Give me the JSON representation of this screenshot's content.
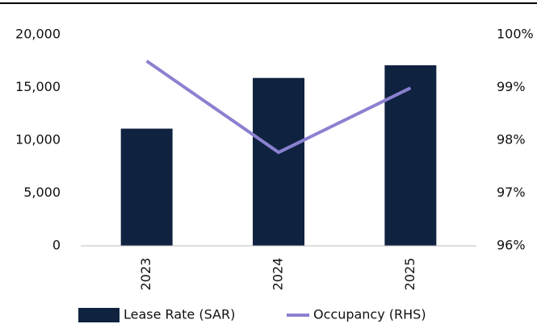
{
  "chart_data": {
    "type": "bar-line",
    "categories": [
      "2023",
      "2024",
      "2025"
    ],
    "series": [
      {
        "name": "Lease Rate (SAR)",
        "type": "bar",
        "color": "#0f2340",
        "values": [
          11100,
          15900,
          17100
        ]
      },
      {
        "name": "Occupancy (RHS)",
        "type": "line",
        "axis": "y2",
        "color": "#8b80d0",
        "values": [
          99.5,
          97.77,
          98.99
        ]
      }
    ],
    "ylim": [
      0,
      20000
    ],
    "yticks": [
      0,
      {
        "value": 5000,
        "label": "5,000"
      },
      {
        "value": 10000,
        "label": "10,000"
      },
      {
        "value": 15000,
        "label": "15,000"
      },
      {
        "value": 20000,
        "label": "20,000"
      }
    ],
    "y2lim": [
      96,
      100
    ],
    "y2ticks": [
      {
        "value": 96,
        "label": "96%"
      },
      {
        "value": 97,
        "label": "97%"
      },
      {
        "value": 98,
        "label": "98%"
      },
      {
        "value": 99,
        "label": "99%"
      },
      {
        "value": 100,
        "label": "100%"
      }
    ],
    "legend": "bottom"
  }
}
